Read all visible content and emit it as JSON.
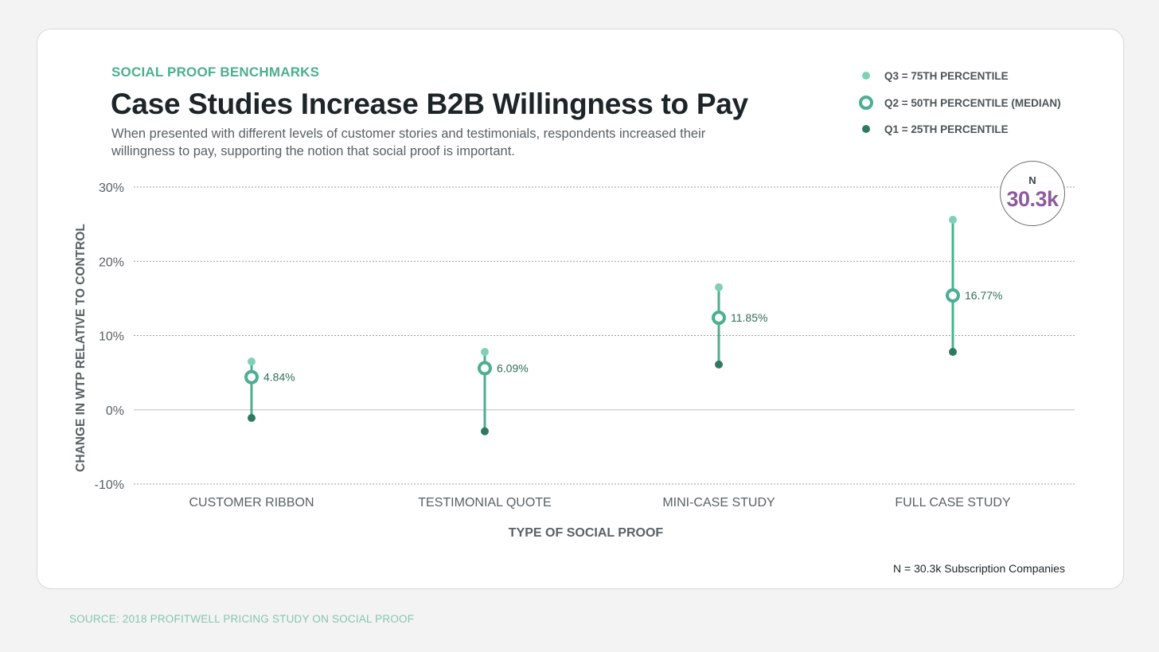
{
  "header": {
    "eyebrow": "SOCIAL PROOF BENCHMARKS",
    "title": "Case Studies Increase B2B Willingness to Pay",
    "subtitle": "When presented with different levels of customer stories and testimonials, respondents increased their willingness to pay, supporting the notion that social proof is important."
  },
  "legend": {
    "q3": "Q3 = 75TH PERCENTILE",
    "q2": "Q2 = 50TH PERCENTILE (MEDIAN)",
    "q1": "Q1 = 25TH PERCENTILE"
  },
  "badge": {
    "label": "N",
    "value": "30.3k"
  },
  "footnote": "N = 30.3k Subscription Companies",
  "source": "SOURCE: 2018 PROFITWELL PRICING STUDY ON SOCIAL PROOF",
  "colors": {
    "accent": "#4caf8f",
    "q3": "#7fd1b3",
    "q1": "#2f7a5f",
    "badge_value": "#8e5b9c",
    "label": "#2f6e58"
  },
  "chart_data": {
    "type": "scatter",
    "subtype": "range-dot (Q1-Q2-Q3)",
    "title": "Case Studies Increase B2B Willingness to Pay",
    "xlabel": "TYPE OF SOCIAL PROOF",
    "ylabel": "CHANGE IN WTP RELATIVE TO CONTROL",
    "ylim": [
      -10,
      30
    ],
    "yticks": [
      "30%",
      "20%",
      "10%",
      "0%",
      "-10%"
    ],
    "ytick_values": [
      30,
      20,
      10,
      0,
      -10
    ],
    "grid": true,
    "legend_position": "top-right",
    "categories": [
      "CUSTOMER RIBBON",
      "TESTIMONIAL QUOTE",
      "MINI-CASE STUDY",
      "FULL CASE STUDY"
    ],
    "series": [
      {
        "name": "Q3 = 75th percentile",
        "values": [
          6.5,
          7.8,
          16.5,
          25.6
        ]
      },
      {
        "name": "Q2 = 50th percentile (median)",
        "values": [
          4.84,
          6.09,
          11.85,
          16.77
        ],
        "plotted_at": [
          4.4,
          5.6,
          12.4,
          15.4
        ]
      },
      {
        "name": "Q1 = 25th percentile",
        "values": [
          -1.1,
          -2.9,
          6.1,
          7.8
        ]
      }
    ],
    "data_labels": [
      "4.84%",
      "6.09%",
      "11.85%",
      "16.77%"
    ]
  }
}
